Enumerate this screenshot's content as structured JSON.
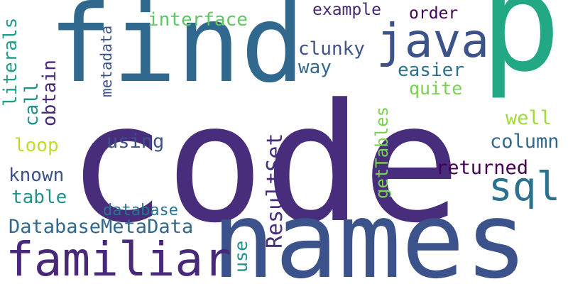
{
  "words": [
    {
      "text": "code",
      "color": "#472d7b",
      "rotated": false
    },
    {
      "text": "names",
      "color": "#3b528b",
      "rotated": false
    },
    {
      "text": "find",
      "color": "#31688e",
      "rotated": false
    },
    {
      "text": "p",
      "color": "#22a884",
      "rotated": false
    },
    {
      "text": "java",
      "color": "#3b528b",
      "rotated": false
    },
    {
      "text": "sql",
      "color": "#2c728e",
      "rotated": false
    },
    {
      "text": "familiar",
      "color": "#482878",
      "rotated": false
    },
    {
      "text": "interface",
      "color": "#5ec962",
      "rotated": false
    },
    {
      "text": "example",
      "color": "#482878",
      "rotated": false
    },
    {
      "text": "order",
      "color": "#440154",
      "rotated": false
    },
    {
      "text": "clunky",
      "color": "#3b528b",
      "rotated": false
    },
    {
      "text": "way",
      "color": "#31688e",
      "rotated": false
    },
    {
      "text": "easier",
      "color": "#2c728e",
      "rotated": false
    },
    {
      "text": "quite",
      "color": "#7ad151",
      "rotated": false
    },
    {
      "text": "well",
      "color": "#a0da39",
      "rotated": false
    },
    {
      "text": "column",
      "color": "#31688e",
      "rotated": false
    },
    {
      "text": "returned",
      "color": "#440154",
      "rotated": false
    },
    {
      "text": "using",
      "color": "#3b528b",
      "rotated": false
    },
    {
      "text": "loop",
      "color": "#bddf26",
      "rotated": false
    },
    {
      "text": "known",
      "color": "#3b528b",
      "rotated": false
    },
    {
      "text": "table",
      "color": "#21918c",
      "rotated": false
    },
    {
      "text": "database",
      "color": "#2c728e",
      "rotated": false
    },
    {
      "text": "DatabaseMetaData",
      "color": "#31688e",
      "rotated": false
    },
    {
      "text": "literals",
      "color": "#1f9e89",
      "rotated": true
    },
    {
      "text": "call",
      "color": "#21918c",
      "rotated": true
    },
    {
      "text": "obtain",
      "color": "#482878",
      "rotated": true
    },
    {
      "text": "metadata",
      "color": "#3b528b",
      "rotated": true
    },
    {
      "text": "getTables",
      "color": "#7ad151",
      "rotated": true
    },
    {
      "text": "ResultSet",
      "color": "#472d7b",
      "rotated": true
    },
    {
      "text": "use",
      "color": "#21918c",
      "rotated": true
    }
  ]
}
